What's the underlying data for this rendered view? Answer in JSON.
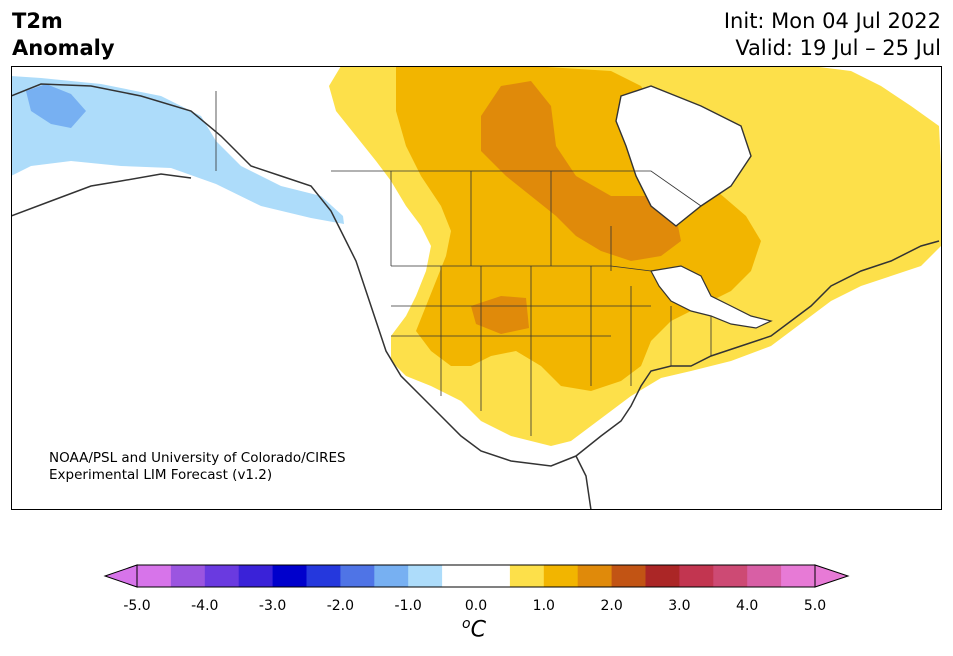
{
  "title": {
    "line1": "T2m",
    "line2": "Anomaly"
  },
  "header": {
    "init": "Init: Mon 04 Jul 2022",
    "valid": "Valid: 19 Jul – 25 Jul"
  },
  "credit": {
    "line1": "NOAA/PSL and University of Colorado/CIRES",
    "line2": "Experimental LIM Forecast (v1.2)"
  },
  "colorbar": {
    "ticks": [
      "-5.0",
      "-4.0",
      "-3.0",
      "-2.0",
      "-1.0",
      "0.0",
      "1.0",
      "2.0",
      "3.0",
      "4.0",
      "5.0"
    ],
    "unit_base": "C",
    "unit_sup": "o",
    "colors": [
      "#d774ea",
      "#9b55e0",
      "#6a3ae0",
      "#3a22d8",
      "#0000cc",
      "#2538dd",
      "#4f74e6",
      "#77b0f2",
      "#addcfa",
      "#ffffff",
      "#ffffff",
      "#fde04a",
      "#f2b500",
      "#e08a0a",
      "#c25414",
      "#ab2626",
      "#c23550",
      "#cd4a74",
      "#d85fa5",
      "#e77ad6"
    ]
  },
  "legend_colors": {
    "cold_light": "#addcfa",
    "cold_medium": "#77b0f2",
    "warm_light": "#fde04a",
    "warm_medium": "#f2b500",
    "warm_strong": "#e08a0a"
  }
}
